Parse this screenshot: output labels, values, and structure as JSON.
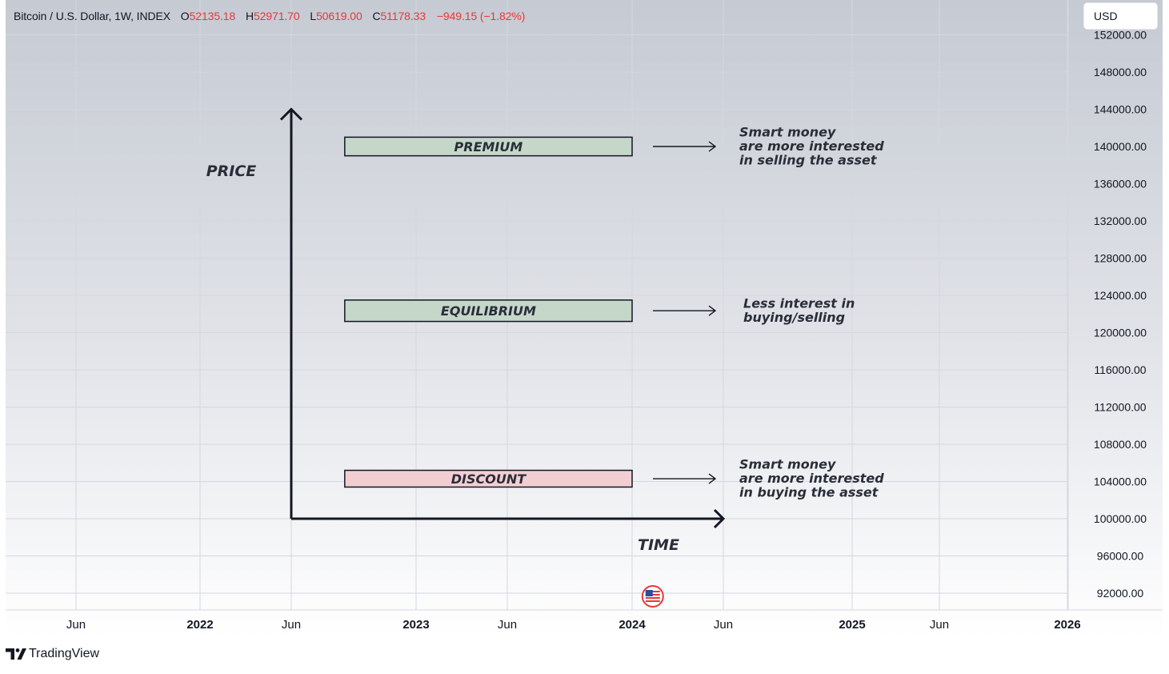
{
  "header": {
    "symbol": "Bitcoin / U.S. Dollar, 1W, INDEX",
    "open_label": "O",
    "open": "52135.18",
    "high_label": "H",
    "high": "52971.70",
    "low_label": "L",
    "low": "50619.00",
    "close_label": "C",
    "close": "51178.33",
    "change": "−949.15 (−1.82%)"
  },
  "currency_button": "USD",
  "brand": "TradingView",
  "colors": {
    "down": "#e5383b",
    "premium_fill": "#c5d7c9",
    "equilibrium_fill": "#c5d7c9",
    "discount_fill": "#f2ced3",
    "ink": "#131722"
  },
  "chart_data": {
    "type": "annotated-price-chart",
    "y_scale": "price",
    "ylim": [
      90000,
      152000
    ],
    "y_ticks": [
      "152000.00",
      "148000.00",
      "144000.00",
      "140000.00",
      "136000.00",
      "132000.00",
      "128000.00",
      "124000.00",
      "120000.00",
      "116000.00",
      "112000.00",
      "108000.00",
      "104000.00",
      "100000.00",
      "96000.00",
      "92000.00"
    ],
    "x_ticks": [
      {
        "label": "Jun",
        "bold": false,
        "date": "2021-06"
      },
      {
        "label": "2022",
        "bold": true,
        "date": "2022-01"
      },
      {
        "label": "Jun",
        "bold": false,
        "date": "2022-06"
      },
      {
        "label": "2023",
        "bold": true,
        "date": "2023-01"
      },
      {
        "label": "Jun",
        "bold": false,
        "date": "2023-06"
      },
      {
        "label": "2024",
        "bold": true,
        "date": "2024-01"
      },
      {
        "label": "Jun",
        "bold": false,
        "date": "2024-06"
      },
      {
        "label": "2025",
        "bold": true,
        "date": "2025-01"
      },
      {
        "label": "Jun",
        "bold": false,
        "date": "2025-06"
      },
      {
        "label": "2026",
        "bold": true,
        "date": "2026-01"
      }
    ],
    "axis_labels": {
      "y": "PRICE",
      "x": "TIME"
    },
    "axes_origin": {
      "date": "2022-06",
      "price": 100000
    },
    "y_arrow_top": 144000,
    "x_arrow_end": "2024-06",
    "zones": [
      {
        "label": "PREMIUM",
        "fill": "premium_fill",
        "start": "2022-09",
        "end": "2024-01",
        "top": 141000,
        "bottom": 139000,
        "note": [
          "Smart money",
          "are more interested",
          "in selling the asset"
        ]
      },
      {
        "label": "EQUILIBRIUM",
        "fill": "equilibrium_fill",
        "start": "2022-09",
        "end": "2024-01",
        "top": 123500,
        "bottom": 121200,
        "note": [
          "Less interest in",
          "buying/selling"
        ]
      },
      {
        "label": "DISCOUNT",
        "fill": "discount_fill",
        "start": "2022-09",
        "end": "2024-01",
        "top": 105200,
        "bottom": 103400,
        "note": [
          "Smart money",
          "are more interested",
          "in buying the asset"
        ]
      }
    ],
    "event_marker": {
      "icon": "us-flag-icon",
      "date": "2024-02"
    }
  }
}
